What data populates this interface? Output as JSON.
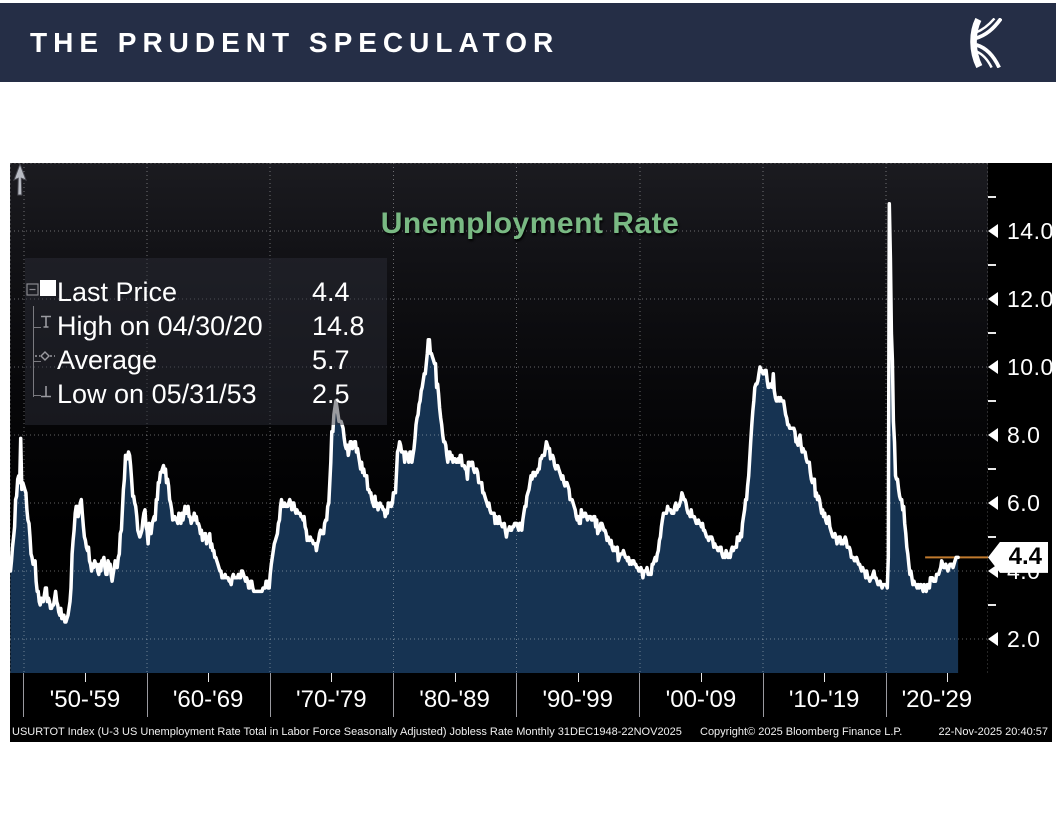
{
  "header": {
    "title": "THE PRUDENT SPECULATOR",
    "logo_name": "kovitz-k-logo",
    "bg_color": "#252e46"
  },
  "chart": {
    "title": "Unemployment Rate",
    "title_color": "#79b983",
    "legend": {
      "rows": [
        {
          "label": "Last Price",
          "value": "4.4",
          "marker": "square"
        },
        {
          "label": "High on 04/30/20",
          "value": "14.8",
          "marker": "high"
        },
        {
          "label": "Average",
          "value": "5.7",
          "marker": "average"
        },
        {
          "label": "Low on 05/31/53",
          "value": "2.5",
          "marker": "low"
        }
      ]
    },
    "last_price_flag": "4.4",
    "footer": {
      "left": "USURTOT Index (U-3 US Unemployment Rate Total in Labor Force Seasonally Adjusted) Jobless Rate Monthly 31DEC1948-22NOV2025",
      "center": "Copyright© 2025 Bloomberg Finance L.P.",
      "right": "22-Nov-2025 20:40:57"
    }
  },
  "chart_data": {
    "type": "area",
    "title": "Unemployment Rate",
    "series_name": "USURTOT Index (U-3 US Unemployment Rate, %)",
    "x_range": [
      1948.92,
      2028.3
    ],
    "y_range": [
      1.0,
      16.0
    ],
    "y_ticks": [
      {
        "v": 14,
        "label": "14.0"
      },
      {
        "v": 12,
        "label": "12.0"
      },
      {
        "v": 10,
        "label": "10.0"
      },
      {
        "v": 8,
        "label": "8.0"
      },
      {
        "v": 6,
        "label": "6.0"
      },
      {
        "v": 4,
        "label": "4.0"
      },
      {
        "v": 2,
        "label": "2.0"
      }
    ],
    "y_minor": [
      15,
      13,
      11,
      9,
      7,
      5,
      3
    ],
    "x_decades": [
      1950,
      1960,
      1970,
      1980,
      1990,
      2000,
      2010,
      2020
    ],
    "x_mid_ticks": [
      1955,
      1965,
      1975,
      1985,
      1995,
      2005,
      2015,
      2025
    ],
    "x_labels": [
      {
        "label": "'50-'59",
        "start": 1950,
        "end": 1960
      },
      {
        "label": "'60-'69",
        "start": 1960,
        "end": 1970
      },
      {
        "label": "'70-'79",
        "start": 1970,
        "end": 1980
      },
      {
        "label": "'80-'89",
        "start": 1980,
        "end": 1990
      },
      {
        "label": "'90-'99",
        "start": 1990,
        "end": 2000
      },
      {
        "label": "'00-'09",
        "start": 2000,
        "end": 2010
      },
      {
        "label": "'10-'19",
        "start": 2010,
        "end": 2020
      },
      {
        "label": "'20-'29",
        "start": 2020,
        "end": 2028.3
      }
    ],
    "stats": {
      "last_price": 4.4,
      "high": {
        "date": "04/30/20",
        "value": 14.8
      },
      "average": 5.7,
      "low": {
        "date": "05/31/53",
        "value": 2.5
      }
    },
    "colors": {
      "line": "#ffffff",
      "fill": "#163352",
      "grid": "rgba(255,255,255,0.38)",
      "last_price_line": "#c07a2e",
      "title": "#79b983"
    },
    "monthly": {
      "1948": [
        null,
        null,
        null,
        null,
        null,
        null,
        null,
        null,
        null,
        null,
        null,
        4.0
      ],
      "1949": [
        4.3,
        4.7,
        5.0,
        5.3,
        6.1,
        6.2,
        6.7,
        6.8,
        6.6,
        7.9,
        6.4,
        6.6
      ],
      "1950": [
        6.5,
        6.4,
        6.3,
        5.8,
        5.5,
        5.4,
        5.0,
        4.5,
        4.4,
        4.2,
        4.2,
        4.3
      ],
      "1951": [
        3.7,
        3.4,
        3.4,
        3.1,
        3.0,
        3.2,
        3.1,
        3.1,
        3.3,
        3.5,
        3.5,
        3.1
      ],
      "1952": [
        3.2,
        3.1,
        2.9,
        2.9,
        3.0,
        3.0,
        3.2,
        3.4,
        3.1,
        3.0,
        2.8,
        2.7
      ],
      "1953": [
        2.9,
        2.6,
        2.6,
        2.7,
        2.5,
        2.5,
        2.6,
        2.7,
        2.9,
        3.1,
        3.5,
        4.5
      ],
      "1954": [
        4.9,
        5.2,
        5.7,
        5.9,
        5.9,
        5.6,
        5.8,
        6.0,
        6.1,
        5.7,
        5.3,
        5.0
      ],
      "1955": [
        4.9,
        4.7,
        4.6,
        4.7,
        4.3,
        4.2,
        4.0,
        4.2,
        4.1,
        4.3,
        4.2,
        4.2
      ],
      "1956": [
        4.0,
        3.9,
        4.2,
        4.0,
        4.3,
        4.3,
        4.4,
        4.1,
        3.9,
        3.9,
        4.3,
        4.2
      ],
      "1957": [
        4.2,
        3.9,
        3.7,
        3.9,
        4.1,
        4.3,
        4.2,
        4.1,
        4.4,
        4.5,
        5.1,
        5.2
      ],
      "1958": [
        5.8,
        6.4,
        6.7,
        7.4,
        7.4,
        7.3,
        7.5,
        7.4,
        7.1,
        6.7,
        6.2,
        6.2
      ],
      "1959": [
        6.0,
        5.9,
        5.6,
        5.2,
        5.1,
        5.0,
        5.1,
        5.2,
        5.5,
        5.7,
        5.8,
        5.3
      ],
      "1960": [
        5.2,
        4.8,
        5.4,
        5.2,
        5.1,
        5.4,
        5.5,
        5.6,
        5.5,
        6.1,
        6.1,
        6.6
      ],
      "1961": [
        6.6,
        6.9,
        6.9,
        7.0,
        7.1,
        6.9,
        7.0,
        6.6,
        6.7,
        6.5,
        6.1,
        6.0
      ],
      "1962": [
        5.8,
        5.5,
        5.6,
        5.6,
        5.5,
        5.5,
        5.4,
        5.7,
        5.6,
        5.4,
        5.7,
        5.5
      ],
      "1963": [
        5.7,
        5.9,
        5.7,
        5.7,
        5.9,
        5.6,
        5.6,
        5.4,
        5.5,
        5.5,
        5.7,
        5.5
      ],
      "1964": [
        5.6,
        5.4,
        5.4,
        5.3,
        5.1,
        5.2,
        4.9,
        5.0,
        5.1,
        5.1,
        4.8,
        5.0
      ],
      "1965": [
        4.9,
        5.1,
        4.7,
        4.8,
        4.6,
        4.6,
        4.4,
        4.4,
        4.3,
        4.2,
        4.1,
        4.0
      ],
      "1966": [
        4.0,
        3.8,
        3.8,
        3.8,
        3.9,
        3.8,
        3.8,
        3.8,
        3.7,
        3.7,
        3.6,
        3.8
      ],
      "1967": [
        3.9,
        3.8,
        3.8,
        3.8,
        3.8,
        3.9,
        3.8,
        3.8,
        4.0,
        4.0,
        3.9,
        3.8
      ],
      "1968": [
        3.7,
        3.8,
        3.7,
        3.5,
        3.5,
        3.7,
        3.7,
        3.5,
        3.4,
        3.4,
        3.4,
        3.4
      ],
      "1969": [
        3.4,
        3.4,
        3.4,
        3.4,
        3.4,
        3.5,
        3.5,
        3.5,
        3.7,
        3.7,
        3.5,
        3.5
      ],
      "1970": [
        3.9,
        4.2,
        4.4,
        4.6,
        4.8,
        4.9,
        5.0,
        5.1,
        5.4,
        5.5,
        5.9,
        6.1
      ],
      "1971": [
        5.9,
        5.9,
        6.0,
        5.9,
        5.9,
        5.9,
        6.0,
        6.1,
        6.0,
        5.8,
        6.0,
        6.0
      ],
      "1972": [
        5.8,
        5.7,
        5.8,
        5.7,
        5.7,
        5.7,
        5.6,
        5.6,
        5.5,
        5.6,
        5.3,
        5.2
      ],
      "1973": [
        4.9,
        5.0,
        4.9,
        5.0,
        4.9,
        4.9,
        4.8,
        4.8,
        4.8,
        4.6,
        4.8,
        4.9
      ],
      "1974": [
        5.1,
        5.2,
        5.1,
        5.1,
        5.1,
        5.4,
        5.5,
        5.5,
        5.9,
        6.0,
        6.6,
        7.2
      ],
      "1975": [
        8.1,
        8.1,
        8.6,
        8.8,
        9.0,
        8.8,
        8.6,
        8.4,
        8.4,
        8.4,
        8.3,
        8.2
      ],
      "1976": [
        7.9,
        7.7,
        7.6,
        7.7,
        7.4,
        7.6,
        7.8,
        7.8,
        7.6,
        7.7,
        7.8,
        7.8
      ],
      "1977": [
        7.5,
        7.6,
        7.4,
        7.2,
        7.0,
        7.2,
        6.9,
        7.0,
        6.8,
        6.8,
        6.8,
        6.4
      ],
      "1978": [
        6.4,
        6.3,
        6.3,
        6.1,
        6.0,
        5.9,
        6.2,
        5.9,
        6.0,
        5.8,
        5.9,
        6.0
      ],
      "1979": [
        5.9,
        5.9,
        5.8,
        5.8,
        5.6,
        5.7,
        5.7,
        6.0,
        5.9,
        6.0,
        5.9,
        6.0
      ],
      "1980": [
        6.3,
        6.3,
        6.3,
        6.9,
        7.5,
        7.6,
        7.8,
        7.7,
        7.5,
        7.5,
        7.5,
        7.2
      ],
      "1981": [
        7.5,
        7.4,
        7.4,
        7.2,
        7.5,
        7.5,
        7.2,
        7.4,
        7.6,
        7.9,
        8.3,
        8.5
      ],
      "1982": [
        8.6,
        8.9,
        9.0,
        9.3,
        9.4,
        9.6,
        9.8,
        9.8,
        10.1,
        10.4,
        10.8,
        10.8
      ],
      "1983": [
        10.4,
        10.4,
        10.3,
        10.2,
        10.1,
        10.1,
        9.4,
        9.5,
        9.2,
        8.8,
        8.5,
        8.3
      ],
      "1984": [
        8.0,
        7.8,
        7.8,
        7.7,
        7.4,
        7.2,
        7.5,
        7.5,
        7.3,
        7.4,
        7.2,
        7.3
      ],
      "1985": [
        7.3,
        7.2,
        7.2,
        7.3,
        7.2,
        7.4,
        7.4,
        7.1,
        7.1,
        7.1,
        7.0,
        7.0
      ],
      "1986": [
        6.7,
        7.2,
        7.2,
        7.1,
        7.2,
        7.2,
        7.0,
        6.9,
        7.0,
        7.0,
        6.9,
        6.6
      ],
      "1987": [
        6.6,
        6.6,
        6.6,
        6.3,
        6.3,
        6.2,
        6.1,
        6.0,
        5.9,
        6.0,
        5.8,
        5.7
      ],
      "1988": [
        5.7,
        5.7,
        5.7,
        5.4,
        5.6,
        5.4,
        5.4,
        5.6,
        5.4,
        5.4,
        5.3,
        5.3
      ],
      "1989": [
        5.4,
        5.2,
        5.0,
        5.2,
        5.2,
        5.3,
        5.2,
        5.2,
        5.3,
        5.3,
        5.4,
        5.4
      ],
      "1990": [
        5.4,
        5.3,
        5.2,
        5.4,
        5.4,
        5.2,
        5.5,
        5.7,
        5.9,
        5.9,
        6.2,
        6.3
      ],
      "1991": [
        6.4,
        6.6,
        6.8,
        6.7,
        6.9,
        6.9,
        6.8,
        6.9,
        6.9,
        7.0,
        7.0,
        7.3
      ],
      "1992": [
        7.3,
        7.4,
        7.4,
        7.4,
        7.6,
        7.8,
        7.7,
        7.6,
        7.6,
        7.3,
        7.4,
        7.4
      ],
      "1993": [
        7.3,
        7.1,
        7.0,
        7.1,
        7.1,
        7.0,
        6.9,
        6.8,
        6.7,
        6.8,
        6.6,
        6.5
      ],
      "1994": [
        6.6,
        6.6,
        6.5,
        6.4,
        6.1,
        6.1,
        6.1,
        6.0,
        5.9,
        5.8,
        5.6,
        5.5
      ],
      "1995": [
        5.6,
        5.4,
        5.4,
        5.8,
        5.6,
        5.6,
        5.7,
        5.7,
        5.6,
        5.5,
        5.6,
        5.6
      ],
      "1996": [
        5.6,
        5.5,
        5.5,
        5.6,
        5.6,
        5.3,
        5.5,
        5.1,
        5.2,
        5.2,
        5.4,
        5.4
      ],
      "1997": [
        5.3,
        5.2,
        5.2,
        5.1,
        4.9,
        5.0,
        4.9,
        4.8,
        4.9,
        4.7,
        4.6,
        4.7
      ],
      "1998": [
        4.6,
        4.6,
        4.7,
        4.3,
        4.4,
        4.5,
        4.5,
        4.5,
        4.6,
        4.5,
        4.4,
        4.4
      ],
      "1999": [
        4.3,
        4.4,
        4.2,
        4.3,
        4.2,
        4.3,
        4.3,
        4.2,
        4.2,
        4.1,
        4.1,
        4.0
      ],
      "2000": [
        4.0,
        4.1,
        4.0,
        3.8,
        4.0,
        4.0,
        4.0,
        4.1,
        3.9,
        3.9,
        3.9,
        3.9
      ],
      "2001": [
        4.2,
        4.2,
        4.3,
        4.4,
        4.3,
        4.5,
        4.6,
        4.9,
        5.0,
        5.3,
        5.5,
        5.7
      ],
      "2002": [
        5.7,
        5.7,
        5.7,
        5.9,
        5.8,
        5.8,
        5.8,
        5.7,
        5.7,
        5.7,
        5.9,
        6.0
      ],
      "2003": [
        5.8,
        5.9,
        5.9,
        6.0,
        6.1,
        6.3,
        6.2,
        6.1,
        6.1,
        6.0,
        5.8,
        5.7
      ],
      "2004": [
        5.7,
        5.6,
        5.8,
        5.6,
        5.6,
        5.6,
        5.5,
        5.4,
        5.4,
        5.5,
        5.4,
        5.4
      ],
      "2005": [
        5.3,
        5.4,
        5.2,
        5.2,
        5.1,
        5.0,
        5.0,
        4.9,
        5.0,
        5.0,
        5.0,
        4.9
      ],
      "2006": [
        4.7,
        4.8,
        4.7,
        4.7,
        4.6,
        4.6,
        4.7,
        4.7,
        4.5,
        4.4,
        4.5,
        4.4
      ],
      "2007": [
        4.6,
        4.5,
        4.4,
        4.5,
        4.4,
        4.6,
        4.7,
        4.6,
        4.7,
        4.7,
        4.7,
        5.0
      ],
      "2008": [
        5.0,
        4.9,
        5.1,
        5.0,
        5.4,
        5.6,
        5.8,
        6.1,
        6.1,
        6.5,
        6.8,
        7.3
      ],
      "2009": [
        7.8,
        8.3,
        8.7,
        9.0,
        9.4,
        9.5,
        9.5,
        9.6,
        9.8,
        10.0,
        9.9,
        9.9
      ],
      "2010": [
        9.8,
        9.8,
        9.9,
        9.9,
        9.6,
        9.4,
        9.4,
        9.5,
        9.5,
        9.4,
        9.8,
        9.3
      ],
      "2011": [
        9.1,
        9.0,
        9.0,
        9.1,
        9.0,
        9.1,
        9.0,
        9.0,
        9.0,
        8.8,
        8.6,
        8.5
      ],
      "2012": [
        8.3,
        8.3,
        8.2,
        8.2,
        8.2,
        8.2,
        8.2,
        8.1,
        7.8,
        7.8,
        7.7,
        7.9
      ],
      "2013": [
        8.0,
        7.7,
        7.5,
        7.6,
        7.5,
        7.5,
        7.3,
        7.2,
        7.2,
        7.2,
        6.9,
        6.7
      ],
      "2014": [
        6.6,
        6.7,
        6.7,
        6.2,
        6.3,
        6.1,
        6.2,
        6.1,
        5.9,
        5.7,
        5.8,
        5.6
      ],
      "2015": [
        5.7,
        5.5,
        5.4,
        5.4,
        5.6,
        5.3,
        5.2,
        5.1,
        5.0,
        5.0,
        5.1,
        5.0
      ],
      "2016": [
        4.8,
        4.9,
        5.0,
        5.0,
        4.8,
        4.9,
        4.8,
        4.9,
        5.0,
        4.9,
        4.7,
        4.7
      ],
      "2017": [
        4.7,
        4.6,
        4.4,
        4.4,
        4.4,
        4.3,
        4.3,
        4.4,
        4.3,
        4.2,
        4.2,
        4.1
      ],
      "2018": [
        4.0,
        4.1,
        4.0,
        4.0,
        3.8,
        4.0,
        3.8,
        3.8,
        3.7,
        3.8,
        3.8,
        3.9
      ],
      "2019": [
        4.0,
        3.8,
        3.8,
        3.7,
        3.6,
        3.6,
        3.7,
        3.6,
        3.5,
        3.6,
        3.6,
        3.6
      ],
      "2020": [
        3.6,
        3.5,
        4.4,
        14.8,
        13.2,
        11.0,
        10.2,
        8.4,
        7.8,
        6.8,
        6.7,
        6.7
      ],
      "2021": [
        6.4,
        6.2,
        6.1,
        6.1,
        5.8,
        5.9,
        5.4,
        5.1,
        4.7,
        4.5,
        4.2,
        3.9
      ],
      "2022": [
        4.0,
        3.8,
        3.6,
        3.7,
        3.6,
        3.6,
        3.5,
        3.6,
        3.5,
        3.6,
        3.6,
        3.5
      ],
      "2023": [
        3.4,
        3.6,
        3.5,
        3.4,
        3.6,
        3.6,
        3.5,
        3.8,
        3.8,
        3.8,
        3.7,
        3.7
      ],
      "2024": [
        3.7,
        3.9,
        3.9,
        3.9,
        4.0,
        4.1,
        4.3,
        4.2,
        4.1,
        4.1,
        4.2,
        4.1
      ],
      "2025": [
        4.0,
        4.1,
        4.2,
        4.2,
        4.2,
        4.1,
        4.2,
        4.3,
        4.4,
        4.4,
        4.4
      ]
    }
  }
}
